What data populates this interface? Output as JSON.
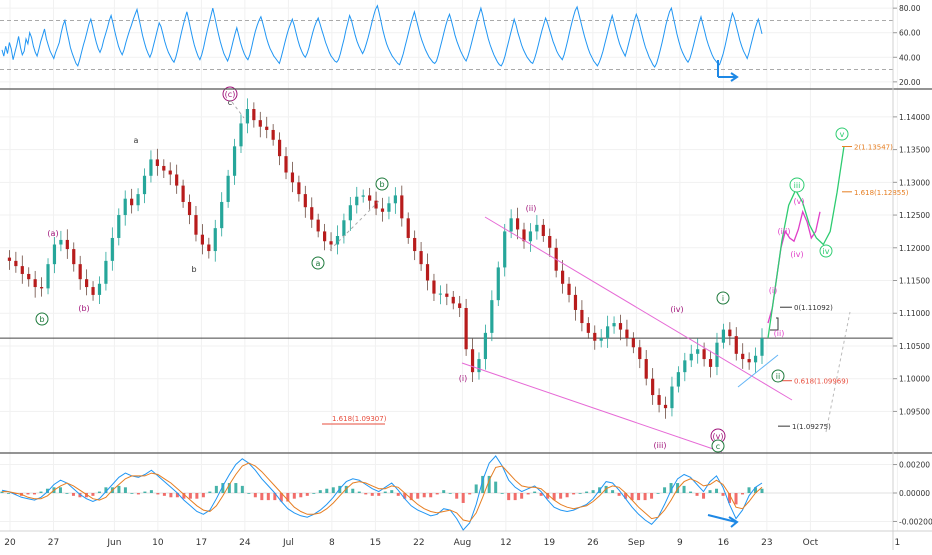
{
  "chart_data": [
    {
      "type": "line",
      "panel": "rsi",
      "ylim": [
        15,
        85
      ],
      "y_ticks": [
        "80.00",
        "60.00",
        "40.00",
        "20.00"
      ],
      "y_tick_values": [
        80,
        60,
        40,
        20
      ],
      "levels": [
        70,
        30
      ],
      "series": [
        {
          "color": "#2196f3",
          "values": [
            46,
            41,
            49,
            43,
            52,
            47,
            38,
            44,
            50,
            57,
            48,
            42,
            45,
            55,
            51,
            60,
            56,
            49,
            44,
            41,
            47,
            53,
            58,
            63,
            55,
            50,
            45,
            42,
            39,
            44,
            48,
            52,
            60,
            66,
            70,
            62,
            55,
            48,
            43,
            39,
            35,
            33,
            38,
            44,
            50,
            55,
            61,
            67,
            71,
            65,
            58,
            52,
            47,
            44,
            48,
            54,
            59,
            64,
            70,
            74,
            68,
            61,
            55,
            49,
            45,
            42,
            46,
            52,
            57,
            62,
            66,
            71,
            75,
            79,
            72,
            65,
            58,
            52,
            47,
            43,
            40,
            44,
            50,
            56,
            62,
            68,
            65,
            59,
            53,
            48,
            44,
            41,
            38,
            36,
            40,
            46,
            53,
            60,
            66,
            72,
            77,
            70,
            63,
            56,
            50,
            45,
            41,
            38,
            42,
            48,
            55,
            62,
            68,
            74,
            80,
            73,
            66,
            59,
            53,
            48,
            43,
            40,
            37,
            41,
            47,
            53,
            59,
            64,
            58,
            52,
            47,
            43,
            40,
            38,
            42,
            48,
            55,
            61,
            66,
            70,
            73,
            68,
            62,
            56,
            51,
            47,
            44,
            41,
            39,
            37,
            35,
            40,
            46,
            52,
            58,
            63,
            67,
            71,
            66,
            60,
            54,
            49,
            45,
            42,
            40,
            43,
            48,
            54,
            60,
            65,
            69,
            72,
            67,
            62,
            57,
            52,
            48,
            44,
            41,
            39,
            37,
            36,
            38,
            43,
            49,
            55,
            62,
            68,
            74,
            70,
            64,
            58,
            53,
            49,
            46,
            43,
            46,
            51,
            56,
            62,
            68,
            74,
            79,
            82,
            76,
            69,
            62,
            56,
            51,
            47,
            44,
            41,
            39,
            37,
            35,
            34,
            38,
            43,
            49,
            55,
            61,
            67,
            72,
            77,
            71,
            65,
            59,
            54,
            50,
            46,
            43,
            40,
            38,
            36,
            35,
            37,
            42,
            48,
            54,
            60,
            66,
            71,
            75,
            70,
            64,
            58,
            53,
            49,
            45,
            42,
            39,
            37,
            41,
            46,
            52,
            58,
            64,
            70,
            75,
            80,
            74,
            67,
            61,
            55,
            50,
            46,
            42,
            39,
            36,
            34,
            33,
            36,
            41,
            47,
            53,
            59,
            65,
            71,
            66,
            60,
            55,
            50,
            46,
            43,
            40,
            38,
            36,
            35,
            39,
            44,
            50,
            56,
            62,
            67,
            72,
            68,
            63,
            58,
            53,
            49,
            45,
            42,
            40,
            38,
            42,
            48,
            54,
            61,
            67,
            73,
            78,
            81,
            75,
            69,
            63,
            57,
            52,
            47,
            43,
            40,
            37,
            35,
            33,
            36,
            40,
            45,
            51,
            57,
            63,
            69,
            74,
            68,
            62,
            56,
            51,
            47,
            44,
            41,
            46,
            52,
            58,
            64,
            70,
            75,
            71,
            65,
            59,
            53,
            48,
            44,
            40,
            37,
            34,
            32,
            35,
            40,
            46,
            52,
            59,
            66,
            72,
            77,
            80,
            73,
            66,
            59,
            53,
            48,
            44,
            41,
            38,
            36,
            39,
            44,
            50,
            56,
            62,
            68,
            73,
            67,
            61,
            55,
            50,
            46,
            42,
            39,
            37,
            35,
            34,
            38,
            43,
            49,
            56,
            63,
            70,
            76,
            72,
            66,
            60,
            54,
            49,
            45,
            42,
            39,
            44,
            50,
            56,
            62,
            67,
            71,
            65,
            59
          ]
        }
      ]
    },
    {
      "type": "line",
      "panel": "price",
      "ylim": [
        1.0888,
        1.1438
      ],
      "y_ticks": [
        "1.14000",
        "1.13500",
        "1.13000",
        "1.12500",
        "1.12000",
        "1.11500",
        "1.11000",
        "1.10500",
        "1.10000",
        "1.09500"
      ],
      "y_tick_values": [
        1.14,
        1.135,
        1.13,
        1.125,
        1.12,
        1.115,
        1.11,
        1.105,
        1.1,
        1.095
      ],
      "x_ticks": [
        "20",
        "27",
        "Jun",
        "10",
        "17",
        "24",
        "Jul",
        "8",
        "15",
        "22",
        "Aug",
        "12",
        "19",
        "26",
        "Sep",
        "9",
        "16",
        "23",
        "Oct",
        "1"
      ],
      "xlim": [
        0,
        92
      ],
      "x_tick_positions": [
        0,
        5,
        12,
        17,
        22,
        27,
        32,
        37,
        42,
        47,
        52,
        57,
        62,
        67,
        72,
        77,
        82,
        87,
        92,
        102
      ],
      "horizontal_line": 1.1062,
      "series": [
        {
          "name": "",
          "color": "#333333",
          "values": [
            1.1185,
            1.118,
            1.1172,
            1.116,
            1.1152,
            1.114,
            1.1138,
            1.1175,
            1.1205,
            1.1212,
            1.1198,
            1.1175,
            1.1152,
            1.114,
            1.1128,
            1.1145,
            1.118,
            1.1215,
            1.125,
            1.1275,
            1.1265,
            1.1282,
            1.131,
            1.1335,
            1.1325,
            1.1318,
            1.1312,
            1.1295,
            1.127,
            1.125,
            1.122,
            1.1205,
            1.1195,
            1.123,
            1.127,
            1.131,
            1.1355,
            1.139,
            1.1412,
            1.1395,
            1.1385,
            1.138,
            1.1365,
            1.134,
            1.1315,
            1.13,
            1.1282,
            1.1262,
            1.1243,
            1.1225,
            1.121,
            1.1205,
            1.1218,
            1.1242,
            1.1265,
            1.1278,
            1.128,
            1.1272,
            1.126,
            1.1255,
            1.1268,
            1.128,
            1.1245,
            1.1215,
            1.1195,
            1.1175,
            1.115,
            1.113,
            1.113,
            1.1125,
            1.1115,
            1.1108,
            1.1045,
            1.101,
            1.103,
            1.107,
            1.112,
            1.117,
            1.1225,
            1.1245,
            1.1228,
            1.121,
            1.1225,
            1.1235,
            1.1218,
            1.12,
            1.1165,
            1.1145,
            1.1128,
            1.1105,
            1.1085,
            1.107,
            1.1058,
            1.1062,
            1.108,
            1.1085,
            1.1075,
            1.1062,
            1.1048,
            1.103,
            1.1,
            1.0975,
            1.096,
            1.0955,
            1.0988,
            1.101,
            1.1028,
            1.1038,
            1.1045,
            1.103,
            1.1018,
            1.1055,
            1.1075,
            1.1065,
            1.1038,
            1.103,
            1.1025,
            1.1035,
            1.1062
          ]
        },
        {
          "name": "",
          "color": "#e040c8",
          "values": [
            1.1085,
            1.1108,
            1.1155,
            1.12,
            1.1225,
            1.1215,
            1.121,
            1.1228,
            1.1255,
            1.124,
            1.1215,
            1.1225,
            1.1255
          ]
        },
        {
          "name": "",
          "color": "#2ecc71",
          "values": [
            1.1062,
            1.1135,
            1.121,
            1.1265,
            1.1288,
            1.127,
            1.1235,
            1.1215,
            1.1205,
            1.1225,
            1.1285,
            1.1355
          ]
        }
      ],
      "annotations": [
        {
          "label": "b",
          "ring": true,
          "color": "#1e7a3c"
        },
        {
          "label": "(a)",
          "color": "#a0147a"
        },
        {
          "label": "(b)",
          "color": "#a0147a"
        },
        {
          "label": "a",
          "color": "#333333"
        },
        {
          "label": "b",
          "color": "#333333"
        },
        {
          "label": "(c)",
          "ring": true,
          "color": "#a0147a"
        },
        {
          "label": "c",
          "color": "#333333"
        },
        {
          "label": "a",
          "ring": true,
          "color": "#1e7a3c"
        },
        {
          "label": "b",
          "ring": true,
          "color": "#1e7a3c"
        },
        {
          "label": "(i)",
          "color": "#a0147a"
        },
        {
          "label": "(ii)",
          "color": "#a0147a"
        },
        {
          "label": "(iii)",
          "color": "#a0147a"
        },
        {
          "label": "(iv)",
          "color": "#a0147a"
        },
        {
          "label": "(v)",
          "ring": true,
          "color": "#a0147a"
        },
        {
          "label": "c",
          "ring": true,
          "color": "#1e7a3c"
        },
        {
          "label": "i",
          "ring": true,
          "color": "#1e7a3c"
        },
        {
          "label": "ii",
          "ring": true,
          "color": "#1e7a3c"
        },
        {
          "label": "(i)",
          "color": "#e040c8"
        },
        {
          "label": "(ii)",
          "color": "#e040c8"
        },
        {
          "label": "(iii)",
          "color": "#e040c8"
        },
        {
          "label": "(iv)",
          "color": "#e040c8"
        },
        {
          "label": "(v)",
          "color": "#e040c8"
        },
        {
          "label": "iii",
          "ring": true,
          "color": "#2ecc71"
        },
        {
          "label": "iv",
          "ring": true,
          "color": "#2ecc71"
        },
        {
          "label": "v",
          "ring": true,
          "color": "#2ecc71"
        }
      ],
      "fib_levels": [
        {
          "label": "0(1.11092)",
          "value": 1.11092,
          "color": "#333333"
        },
        {
          "label": "0.618(1.09969)",
          "value": 1.09969,
          "color": "#e74c3c"
        },
        {
          "label": "1(1.09275)",
          "value": 1.09275,
          "color": "#333333"
        },
        {
          "label": "1.618(1.12855)",
          "value": 1.12855,
          "color": "#e67e22"
        },
        {
          "label": "2(1.13547)",
          "value": 1.13547,
          "color": "#e67e22"
        },
        {
          "label": "1.618(1.09307)",
          "value": 1.09307,
          "color": "#e74c3c"
        }
      ]
    },
    {
      "type": "line",
      "panel": "macd",
      "ylim": [
        -0.0026,
        0.0026
      ],
      "y_ticks": [
        "0.00200",
        "0.00000",
        "-0.00200"
      ],
      "y_tick_values": [
        0.002,
        0.0,
        -0.002
      ],
      "series": [
        {
          "name": "",
          "color": "#2196f3",
          "values": [
            0.0002,
            0.0001,
            -0.0001,
            -0.0003,
            -0.0004,
            -0.0005,
            -0.0003,
            0.0001,
            0.0006,
            0.0009,
            0.0007,
            0.0003,
            -0.0001,
            -0.0004,
            -0.0006,
            -0.0004,
            0.0001,
            0.0006,
            0.0011,
            0.0014,
            0.0012,
            0.0011,
            0.0013,
            0.0016,
            0.0012,
            0.0008,
            0.0004,
            0.0,
            -0.0005,
            -0.0009,
            -0.0013,
            -0.0015,
            -0.0012,
            -0.0004,
            0.0005,
            0.0013,
            0.002,
            0.0024,
            0.0021,
            0.0016,
            0.001,
            0.0005,
            0.0,
            -0.0006,
            -0.0011,
            -0.0014,
            -0.0016,
            -0.0017,
            -0.0015,
            -0.0012,
            -0.0008,
            -0.0003,
            0.0003,
            0.0008,
            0.001,
            0.0009,
            0.0006,
            0.0003,
            0.0001,
            0.0004,
            0.0007,
            0.0002,
            -0.0004,
            -0.0009,
            -0.0012,
            -0.0014,
            -0.0016,
            -0.0015,
            -0.0011,
            -0.0012,
            -0.0018,
            -0.0026,
            -0.0021,
            -0.0008,
            0.0009,
            0.0021,
            0.0026,
            0.0019,
            0.0009,
            0.0004,
            0.0001,
            0.0003,
            0.0005,
            0.0001,
            -0.0005,
            -0.001,
            -0.0012,
            -0.0013,
            -0.0012,
            -0.001,
            -0.0008,
            -0.0004,
            0.0002,
            0.0008,
            0.0007,
            0.0002,
            -0.0004,
            -0.001,
            -0.0015,
            -0.0019,
            -0.0022,
            -0.0017,
            -0.0008,
            0.0002,
            0.001,
            0.0013,
            0.0011,
            0.0006,
            0.0001,
            0.0008,
            0.0012,
            0.0004,
            -0.0008,
            -0.0018,
            -0.0012,
            -0.0002,
            0.0004,
            0.0007
          ]
        },
        {
          "name": "",
          "color": "#e67e22",
          "values": [
            0.0001,
            0.0001,
            0.0,
            -0.0001,
            -0.0003,
            -0.0004,
            -0.0004,
            -0.0002,
            0.0002,
            0.0005,
            0.0007,
            0.0005,
            0.0002,
            -0.0001,
            -0.0004,
            -0.0005,
            -0.0003,
            0.0002,
            0.0006,
            0.001,
            0.0012,
            0.0012,
            0.0012,
            0.0014,
            0.0013,
            0.001,
            0.0007,
            0.0003,
            -0.0001,
            -0.0005,
            -0.0009,
            -0.0012,
            -0.0013,
            -0.0009,
            -0.0002,
            0.0006,
            0.0013,
            0.0019,
            0.0021,
            0.0019,
            0.0015,
            0.001,
            0.0005,
            0.0,
            -0.0005,
            -0.001,
            -0.0013,
            -0.0015,
            -0.0015,
            -0.0014,
            -0.0011,
            -0.0007,
            -0.0002,
            0.0003,
            0.0007,
            0.0008,
            0.0007,
            0.0005,
            0.0003,
            0.0003,
            0.0005,
            0.0004,
            0.0,
            -0.0004,
            -0.0008,
            -0.0011,
            -0.0013,
            -0.0014,
            -0.0013,
            -0.0012,
            -0.0014,
            -0.0019,
            -0.002,
            -0.0014,
            -0.0003,
            0.0009,
            0.0018,
            0.0019,
            0.0014,
            0.0009,
            0.0005,
            0.0004,
            0.0004,
            0.0003,
            -0.0001,
            -0.0005,
            -0.0008,
            -0.001,
            -0.0011,
            -0.001,
            -0.0009,
            -0.0006,
            -0.0002,
            0.0003,
            0.0005,
            0.0004,
            0.0,
            -0.0005,
            -0.001,
            -0.0014,
            -0.0018,
            -0.0017,
            -0.0012,
            -0.0005,
            0.0003,
            0.0008,
            0.001,
            0.0008,
            0.0005,
            0.0006,
            0.0009,
            0.0006,
            -0.0001,
            -0.001,
            -0.0011,
            -0.0006,
            0.0,
            0.0004
          ]
        }
      ]
    }
  ]
}
